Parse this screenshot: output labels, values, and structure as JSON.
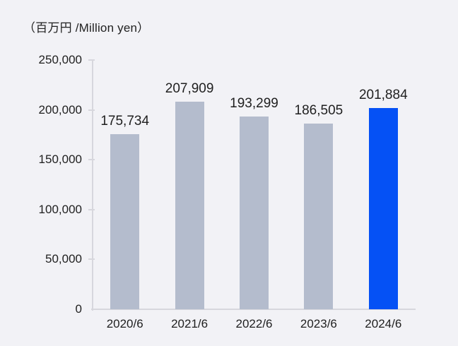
{
  "chart_data": {
    "type": "bar",
    "title": "（百万円 /Million yen）",
    "categories": [
      "2020/6",
      "2021/6",
      "2022/6",
      "2023/6",
      "2024/6"
    ],
    "values": [
      175734,
      207909,
      193299,
      186505,
      201884
    ],
    "value_labels": [
      "175,734",
      "207,909",
      "193,299",
      "186,505",
      "201,884"
    ],
    "y_ticks": [
      0,
      50000,
      100000,
      150000,
      200000,
      250000
    ],
    "y_tick_labels": [
      "0",
      "50,000",
      "100,000",
      "150,000",
      "200,000",
      "250,000"
    ],
    "ylim": [
      0,
      250000
    ],
    "xlabel": "",
    "ylabel": "",
    "grid": false,
    "legend": false,
    "highlight_index": 4
  },
  "colors": {
    "background": "#f2f2f6",
    "bar_default": "#b4bccd",
    "bar_highlight": "#0551f5",
    "axis": "#d7d7dd",
    "text": "#1f1f1f"
  }
}
